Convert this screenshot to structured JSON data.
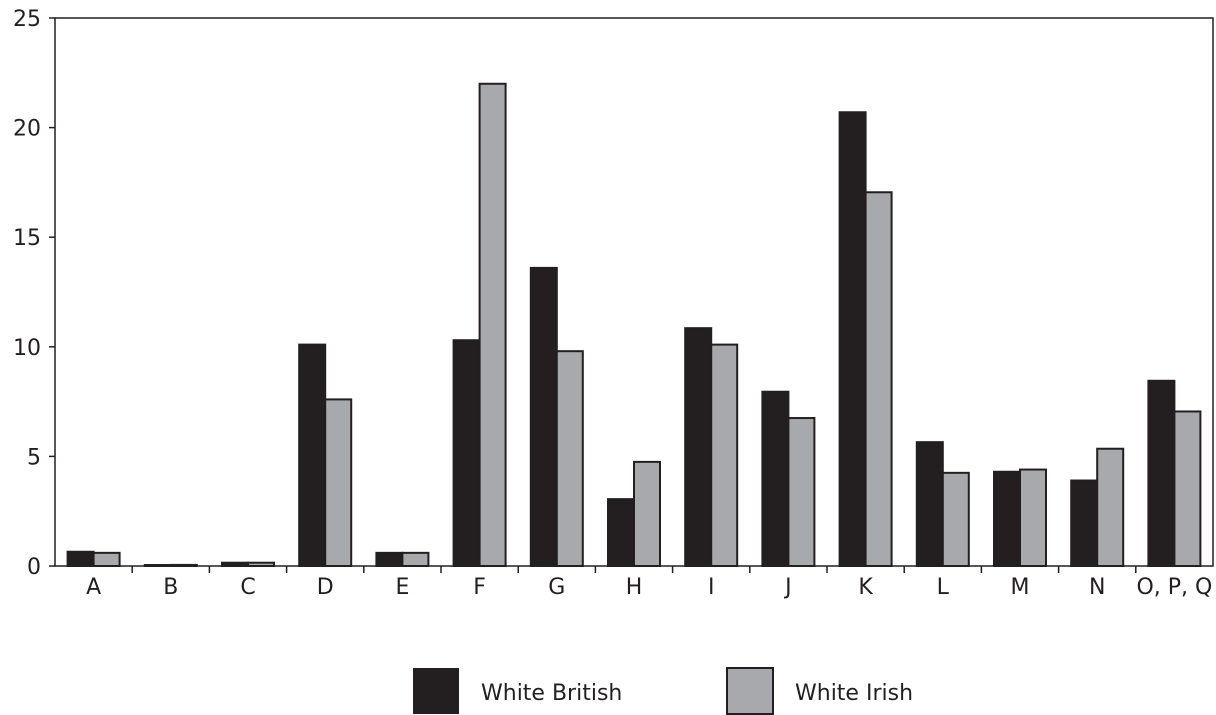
{
  "chart_data": {
    "type": "bar",
    "categories": [
      "A",
      "B",
      "C",
      "D",
      "E",
      "F",
      "G",
      "H",
      "I",
      "J",
      "K",
      "L",
      "M",
      "N",
      "O, P, Q"
    ],
    "series": [
      {
        "name": "White British",
        "color": "#231f20",
        "values": [
          0.65,
          0.03,
          0.15,
          10.1,
          0.6,
          10.3,
          13.6,
          3.05,
          10.85,
          7.95,
          20.7,
          5.65,
          4.3,
          3.9,
          8.45
        ]
      },
      {
        "name": "White Irish",
        "color": "#a7a9ac",
        "values": [
          0.6,
          0.05,
          0.15,
          7.6,
          0.6,
          22.0,
          9.8,
          4.75,
          10.1,
          6.75,
          17.05,
          4.25,
          4.4,
          5.35,
          7.05
        ]
      }
    ],
    "yticks": [
      0,
      5,
      10,
      15,
      20,
      25
    ],
    "ylim": [
      0,
      25
    ],
    "grid": false,
    "legend_position": "bottom",
    "title": "",
    "xlabel": "",
    "ylabel": ""
  }
}
